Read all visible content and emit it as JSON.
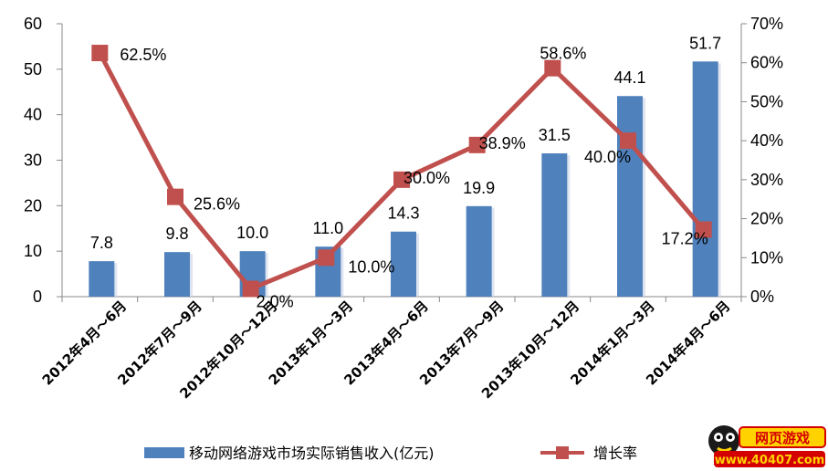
{
  "chart_data": {
    "type": "bar",
    "categories": [
      "2012年4月～6月",
      "2012年7月～9月",
      "2012年10月～12月",
      "2013年1月～3月",
      "2013年4月～6月",
      "2013年7月～9月",
      "2013年10月～12月",
      "2014年1月～3月",
      "2014年4月～6月"
    ],
    "series": [
      {
        "name": "移动网络游戏市场实际销售收入(亿元)",
        "type": "bar",
        "axis": "left",
        "values": [
          7.8,
          9.8,
          10.0,
          11.0,
          14.3,
          19.9,
          31.5,
          44.1,
          51.7
        ],
        "labels": [
          "7.8",
          "9.8",
          "10.0",
          "11.0",
          "14.3",
          "19.9",
          "31.5",
          "44.1",
          "51.7"
        ],
        "color": "#4F81BD"
      },
      {
        "name": "增长率",
        "type": "line",
        "axis": "right",
        "values": [
          62.5,
          25.6,
          2.0,
          10.0,
          30.0,
          38.9,
          58.6,
          40.0,
          17.2
        ],
        "labels": [
          "62.5%",
          "25.6%",
          "2.0%",
          "10.0%",
          "30.0%",
          "38.9%",
          "58.6%",
          "40.0%",
          "17.2%"
        ],
        "color": "#C0504D"
      }
    ],
    "y_left": {
      "min": 0,
      "max": 60,
      "ticks": [
        "0",
        "10",
        "20",
        "30",
        "40",
        "50",
        "60"
      ]
    },
    "y_right": {
      "min": 0,
      "max": 70,
      "ticks": [
        "0%",
        "10%",
        "20%",
        "30%",
        "40%",
        "50%",
        "60%",
        "70%"
      ]
    },
    "grid": false,
    "legend_position": "bottom"
  },
  "watermark": {
    "line1": "网页游戏",
    "line2": "www.40407.com"
  }
}
